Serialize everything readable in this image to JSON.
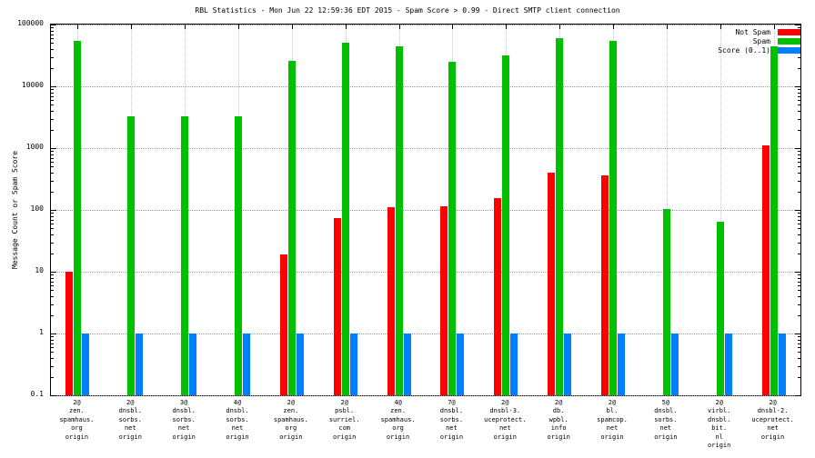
{
  "title": "RBL Statistics - Mon Jun 22 12:59:36 EDT 2015 - Spam Score > 0.99 - Direct SMTP client connection",
  "ylabel": "Message Count or Spam Score",
  "chart_data": {
    "type": "bar",
    "scale": "log",
    "ylim": [
      0.1,
      100000
    ],
    "yticks": [
      100000,
      10000,
      1000,
      100,
      10,
      1,
      0.1
    ],
    "grid": true,
    "legend_position": "top-right",
    "categories": [
      [
        "2@",
        "zen.",
        "spamhaus.",
        "org",
        "origin"
      ],
      [
        "2@",
        "dnsbl.",
        "sorbs.",
        "net",
        "origin"
      ],
      [
        "3@",
        "dnsbl.",
        "sorbs.",
        "net",
        "origin"
      ],
      [
        "4@",
        "dnsbl.",
        "sorbs.",
        "net",
        "origin"
      ],
      [
        "2@",
        "zen.",
        "spamhaus.",
        "org",
        "origin"
      ],
      [
        "2@",
        "psbl.",
        "surriel.",
        "com",
        "origin"
      ],
      [
        "4@",
        "zen.",
        "spamhaus.",
        "org",
        "origin"
      ],
      [
        "7@",
        "dnsbl.",
        "sorbs.",
        "net",
        "origin"
      ],
      [
        "2@",
        "dnsbl-3.",
        "uceprotect.",
        "net",
        "origin"
      ],
      [
        "2@",
        "db.",
        "wpbl.",
        "info",
        "origin"
      ],
      [
        "2@",
        "bl.",
        "spamcop.",
        "net",
        "origin"
      ],
      [
        "5@",
        "dnsbl.",
        "sorbs.",
        "net",
        "origin"
      ],
      [
        "2@",
        "virbl.",
        "dnsbl.",
        "bit.",
        "nl",
        "origin"
      ],
      [
        "2@",
        "dnsbl-2.",
        "uceprotect.",
        "net",
        "origin"
      ]
    ],
    "series": [
      {
        "name": "Not Spam",
        "color": "#ff0000",
        "values": [
          10,
          null,
          null,
          null,
          19,
          75,
          110,
          115,
          155,
          400,
          360,
          null,
          null,
          1100
        ]
      },
      {
        "name": "Spam",
        "color": "#00c000",
        "values": [
          55000,
          3300,
          3300,
          3300,
          26000,
          50000,
          45000,
          25000,
          32000,
          60000,
          55000,
          105,
          65,
          45000
        ]
      },
      {
        "name": "Score (0..1)",
        "color": "#0080ff",
        "values": [
          1,
          1,
          1,
          1,
          1,
          1,
          1,
          1,
          1,
          1,
          1,
          1,
          1,
          1
        ]
      }
    ]
  }
}
